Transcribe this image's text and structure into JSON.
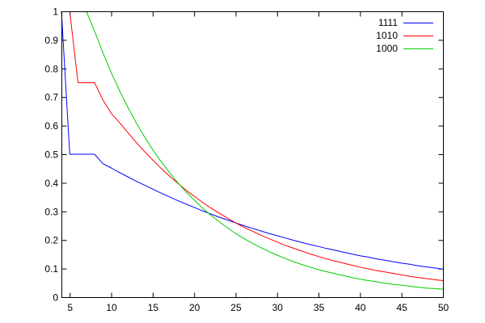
{
  "chart_data": {
    "type": "line",
    "title": "",
    "xlabel": "",
    "ylabel": "",
    "xlim": [
      4,
      50
    ],
    "ylim": [
      0,
      1
    ],
    "x_ticks": [
      "5",
      "10",
      "15",
      "20",
      "25",
      "30",
      "35",
      "40",
      "45",
      "50"
    ],
    "y_ticks": [
      "0",
      "0.1",
      "0.2",
      "0.3",
      "0.4",
      "0.5",
      "0.6",
      "0.7",
      "0.8",
      "0.9",
      "1"
    ],
    "grid": false,
    "legend_position": "top-right",
    "series": [
      {
        "name": "1111",
        "color": "#0000ff",
        "points": [
          [
            4,
            1.0
          ],
          [
            5,
            0.5
          ],
          [
            6,
            0.5
          ],
          [
            7,
            0.5
          ],
          [
            8,
            0.5
          ],
          [
            9,
            0.467
          ],
          [
            10,
            0.452
          ],
          [
            11,
            0.436
          ],
          [
            12,
            0.421
          ],
          [
            13,
            0.406
          ],
          [
            14,
            0.392
          ],
          [
            15,
            0.378
          ],
          [
            16,
            0.364
          ],
          [
            17,
            0.351
          ],
          [
            18,
            0.338
          ],
          [
            19,
            0.326
          ],
          [
            20,
            0.314
          ],
          [
            21,
            0.302
          ],
          [
            22,
            0.291
          ],
          [
            23,
            0.28
          ],
          [
            24,
            0.27
          ],
          [
            25,
            0.26
          ],
          [
            26,
            0.25
          ],
          [
            27,
            0.241
          ],
          [
            28,
            0.232
          ],
          [
            29,
            0.223
          ],
          [
            30,
            0.215
          ],
          [
            31,
            0.207
          ],
          [
            32,
            0.199
          ],
          [
            33,
            0.191
          ],
          [
            34,
            0.184
          ],
          [
            35,
            0.177
          ],
          [
            36,
            0.17
          ],
          [
            37,
            0.164
          ],
          [
            38,
            0.157
          ],
          [
            39,
            0.151
          ],
          [
            40,
            0.145
          ],
          [
            41,
            0.14
          ],
          [
            42,
            0.134
          ],
          [
            43,
            0.129
          ],
          [
            44,
            0.124
          ],
          [
            45,
            0.119
          ],
          [
            46,
            0.115
          ],
          [
            47,
            0.11
          ],
          [
            48,
            0.106
          ],
          [
            49,
            0.102
          ],
          [
            50,
            0.098
          ]
        ]
      },
      {
        "name": "1010",
        "color": "#ff0000",
        "points": [
          [
            5,
            1.0
          ],
          [
            6,
            0.75
          ],
          [
            7,
            0.75
          ],
          [
            8,
            0.75
          ],
          [
            9,
            0.69
          ],
          [
            10,
            0.643
          ],
          [
            11,
            0.611
          ],
          [
            12,
            0.576
          ],
          [
            13,
            0.542
          ],
          [
            14,
            0.51
          ],
          [
            15,
            0.48
          ],
          [
            16,
            0.451
          ],
          [
            17,
            0.424
          ],
          [
            18,
            0.399
          ],
          [
            19,
            0.375
          ],
          [
            20,
            0.353
          ],
          [
            21,
            0.332
          ],
          [
            22,
            0.312
          ],
          [
            23,
            0.294
          ],
          [
            24,
            0.277
          ],
          [
            25,
            0.26
          ],
          [
            26,
            0.245
          ],
          [
            27,
            0.231
          ],
          [
            28,
            0.217
          ],
          [
            29,
            0.205
          ],
          [
            30,
            0.193
          ],
          [
            31,
            0.181
          ],
          [
            32,
            0.171
          ],
          [
            33,
            0.161
          ],
          [
            34,
            0.151
          ],
          [
            35,
            0.142
          ],
          [
            36,
            0.134
          ],
          [
            37,
            0.126
          ],
          [
            38,
            0.119
          ],
          [
            39,
            0.112
          ],
          [
            40,
            0.105
          ],
          [
            41,
            0.099
          ],
          [
            42,
            0.093
          ],
          [
            43,
            0.088
          ],
          [
            44,
            0.083
          ],
          [
            45,
            0.078
          ],
          [
            46,
            0.073
          ],
          [
            47,
            0.069
          ],
          [
            48,
            0.065
          ],
          [
            49,
            0.061
          ],
          [
            50,
            0.058
          ]
        ]
      },
      {
        "name": "1000",
        "color": "#00cc00",
        "points": [
          [
            7,
            1.0
          ],
          [
            8,
            0.93
          ],
          [
            9,
            0.855
          ],
          [
            10,
            0.786
          ],
          [
            11,
            0.723
          ],
          [
            12,
            0.665
          ],
          [
            13,
            0.611
          ],
          [
            14,
            0.562
          ],
          [
            15,
            0.516
          ],
          [
            16,
            0.475
          ],
          [
            17,
            0.437
          ],
          [
            18,
            0.401
          ],
          [
            19,
            0.369
          ],
          [
            20,
            0.34
          ],
          [
            21,
            0.312
          ],
          [
            22,
            0.287
          ],
          [
            23,
            0.264
          ],
          [
            24,
            0.243
          ],
          [
            25,
            0.223
          ],
          [
            26,
            0.205
          ],
          [
            27,
            0.189
          ],
          [
            28,
            0.174
          ],
          [
            29,
            0.16
          ],
          [
            30,
            0.147
          ],
          [
            31,
            0.135
          ],
          [
            32,
            0.124
          ],
          [
            33,
            0.114
          ],
          [
            34,
            0.105
          ],
          [
            35,
            0.096
          ],
          [
            36,
            0.089
          ],
          [
            37,
            0.082
          ],
          [
            38,
            0.075
          ],
          [
            39,
            0.069
          ],
          [
            40,
            0.063
          ],
          [
            41,
            0.058
          ],
          [
            42,
            0.054
          ],
          [
            43,
            0.049
          ],
          [
            44,
            0.045
          ],
          [
            45,
            0.042
          ],
          [
            46,
            0.038
          ],
          [
            47,
            0.035
          ],
          [
            48,
            0.032
          ],
          [
            49,
            0.03
          ],
          [
            50,
            0.028
          ]
        ]
      }
    ]
  }
}
